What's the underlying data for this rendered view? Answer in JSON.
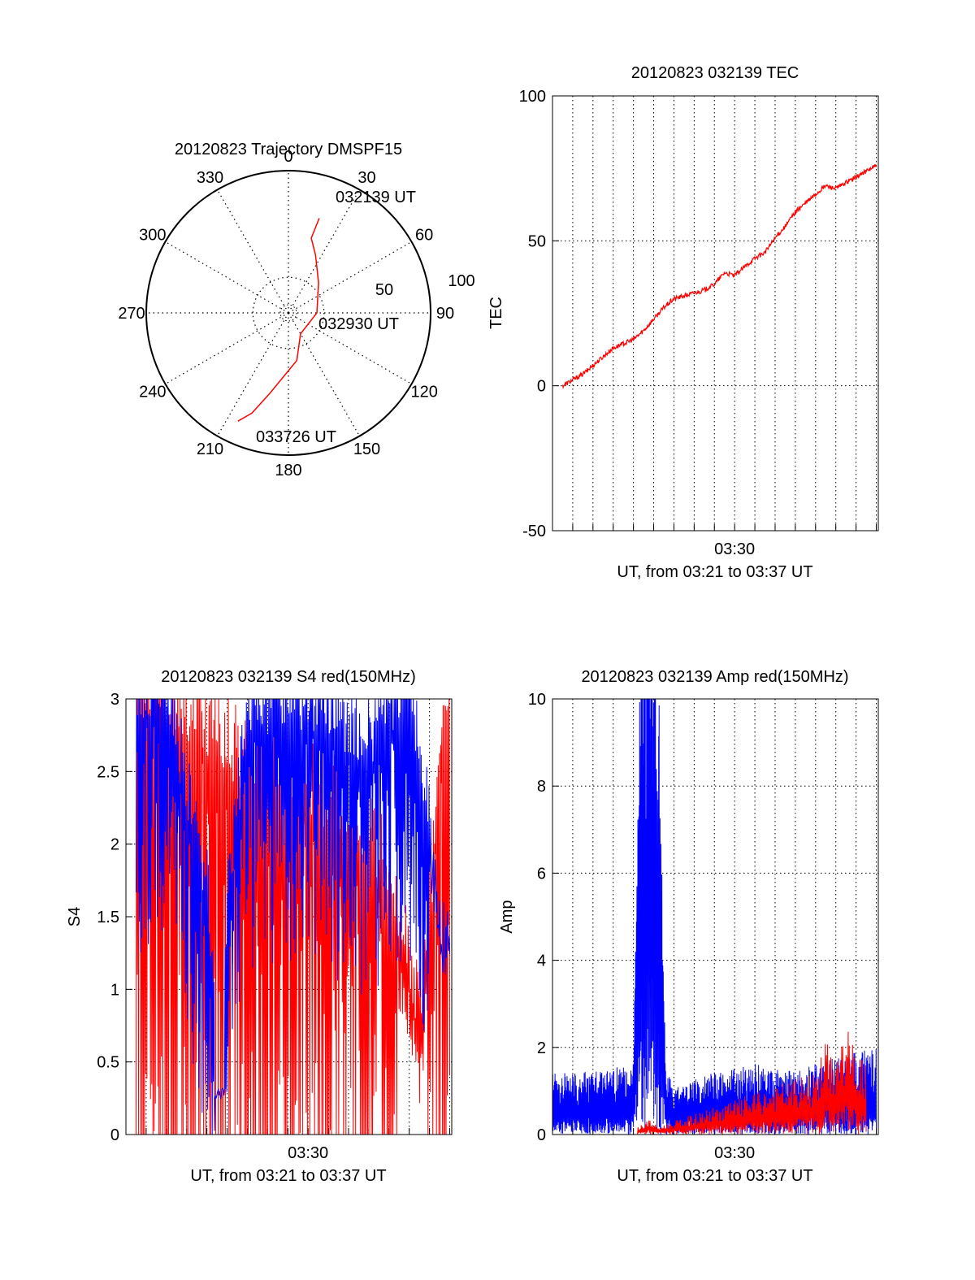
{
  "colors": {
    "red": "#ff0000",
    "blue": "#0000ff",
    "axis": "#000000"
  },
  "chart_data": [
    {
      "type": "polar",
      "title": "20120823 Trajectory DMSPF15",
      "angle_labels": [
        "0",
        "30",
        "60",
        "90",
        "120",
        "150",
        "180",
        "210",
        "240",
        "270",
        "300",
        "330"
      ],
      "angle_values": [
        0,
        30,
        60,
        90,
        120,
        150,
        180,
        210,
        240,
        270,
        300,
        330
      ],
      "radius_labels": [
        "50",
        "100"
      ],
      "radius_values": [
        50,
        100
      ],
      "rlim": [
        0,
        100
      ],
      "grid": true,
      "trajectory": {
        "color": "red",
        "points": [
          [
            18,
            70
          ],
          [
            17,
            55
          ],
          [
            25,
            45
          ],
          [
            45,
            30
          ],
          [
            90,
            20
          ],
          [
            150,
            17
          ],
          [
            170,
            34
          ],
          [
            193,
            58
          ],
          [
            200,
            75
          ],
          [
            205,
            84
          ]
        ]
      },
      "annotations": [
        {
          "text": "032139 UT",
          "azimuth": 18,
          "radius": 70
        },
        {
          "text": "032930 UT",
          "azimuth": 90,
          "radius": 20
        },
        {
          "text": "033726 UT",
          "azimuth": 205,
          "radius": 84
        }
      ]
    },
    {
      "type": "line",
      "title": "20120823 032139 TEC",
      "ylabel": "TEC",
      "xlabel": "UT, from 03:21 to 03:37 UT",
      "xticks": [
        {
          "t": 9.0,
          "label": "03:30"
        }
      ],
      "xlim": [
        0,
        16.1
      ],
      "ylim": [
        -50,
        100
      ],
      "yticks": [
        -50,
        0,
        50,
        100
      ],
      "grid": true,
      "series": [
        {
          "color": "red",
          "x": [
            0.5,
            1.5,
            2.5,
            3.0,
            4.0,
            4.5,
            5.0,
            5.5,
            6.0,
            6.5,
            7.0,
            7.5,
            8.0,
            8.5,
            9.0,
            9.5,
            10.0,
            10.5,
            11.0,
            11.5,
            12.0,
            12.5,
            13.0,
            13.5,
            14.0,
            14.5,
            15.0,
            15.5,
            16.0
          ],
          "y": [
            0,
            4,
            10,
            13,
            16,
            19,
            23,
            27,
            30,
            31,
            32,
            33,
            35,
            39,
            38,
            41,
            44,
            46,
            51,
            55,
            60,
            63,
            66,
            69,
            68,
            70,
            72,
            74,
            76
          ]
        }
      ]
    },
    {
      "type": "line",
      "title": "20120823 032139 S4 red(150MHz)",
      "ylabel": "S4",
      "xlabel": "UT, from 03:21 to 03:37 UT",
      "xticks": [
        {
          "t": 9.0,
          "label": "03:30"
        }
      ],
      "xlim": [
        0,
        16.1
      ],
      "ylim": [
        0,
        3
      ],
      "yticks": [
        0,
        0.5,
        1,
        1.5,
        2,
        2.5,
        3
      ],
      "ytick_labels": [
        "0",
        "0.5",
        "1",
        "1.5",
        "2",
        "2.5",
        "3"
      ],
      "grid": true,
      "series": [
        {
          "color": "red",
          "x": [
            0.5,
            2.0,
            4.0,
            6.0,
            8.0,
            10.0,
            12.0,
            13.0,
            14.0,
            14.5,
            15.0,
            15.5,
            16.0
          ],
          "y": [
            3.0,
            2.8,
            2.6,
            2.3,
            2.2,
            2.1,
            1.8,
            1.5,
            1.0,
            0.6,
            1.2,
            2.5,
            3.0
          ]
        },
        {
          "color": "blue",
          "x": [
            0.5,
            2.0,
            4.0,
            4.6,
            5.0,
            6.0,
            8.0,
            10.0,
            12.0,
            13.0,
            14.0,
            15.0,
            15.5,
            16.0
          ],
          "y": [
            2.8,
            2.9,
            1.5,
            0.3,
            1.4,
            2.7,
            2.8,
            2.7,
            2.5,
            2.7,
            2.8,
            2.0,
            1.4,
            1.3
          ]
        }
      ]
    },
    {
      "type": "line",
      "title": "20120823 032139 Amp red(150MHz)",
      "ylabel": "Amp",
      "xlabel": "UT, from 03:21 to 03:37 UT",
      "xticks": [
        {
          "t": 9.0,
          "label": "03:30"
        }
      ],
      "xlim": [
        0,
        16.1
      ],
      "ylim": [
        0,
        10
      ],
      "yticks": [
        0,
        2,
        4,
        6,
        8,
        10
      ],
      "grid": true,
      "series": [
        {
          "color": "blue",
          "x": [
            0.0,
            2.0,
            4.0,
            4.4,
            4.8,
            5.2,
            5.6,
            6.0,
            8.0,
            10.0,
            12.0,
            14.0,
            16.0
          ],
          "y": [
            0.8,
            0.8,
            0.9,
            7.0,
            8.8,
            6.5,
            1.0,
            0.6,
            0.8,
            0.9,
            0.8,
            1.0,
            1.1
          ]
        },
        {
          "color": "red",
          "x": [
            4.2,
            4.8,
            5.2,
            13.0,
            13.5,
            14.0,
            14.5,
            15.0,
            15.5
          ],
          "y": [
            0.1,
            0.2,
            0.1,
            0.8,
            1.2,
            1.0,
            1.4,
            1.1,
            0.9
          ]
        }
      ]
    }
  ]
}
